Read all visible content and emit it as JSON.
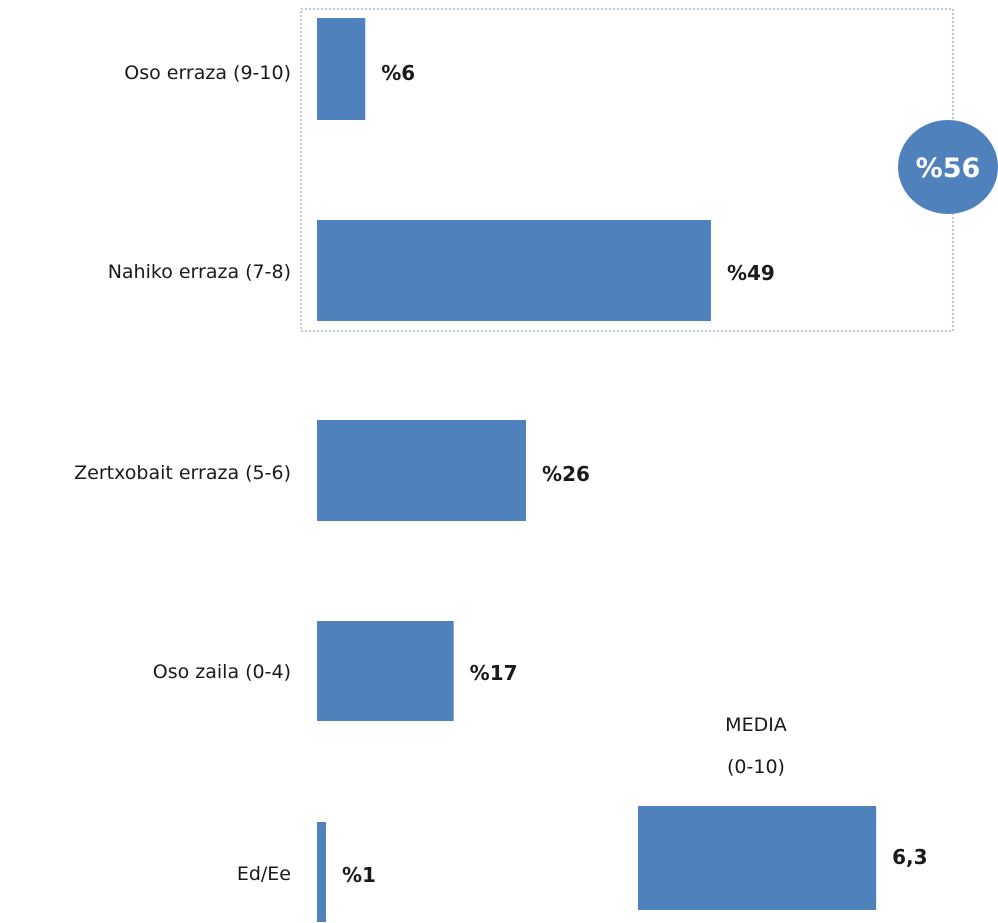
{
  "chart_data": {
    "type": "bar",
    "orientation": "horizontal",
    "categories": [
      "Oso erraza (9-10)",
      "Nahiko erraza (7-8)",
      "Zertxobait erraza (5-6)",
      "Oso zaila (0-4)",
      "Ed/Ee"
    ],
    "values": [
      6,
      49,
      26,
      17,
      1
    ],
    "value_labels": [
      "%6",
      "%49",
      "%26",
      "%17",
      "%1"
    ],
    "bar_color": "#4F81BD",
    "grid": false,
    "legend": "none",
    "group_highlight": {
      "categories": [
        "Oso erraza (9-10)",
        "Nahiko erraza (7-8)"
      ],
      "total_label": "%56",
      "border_style": "dotted",
      "border_color": "#8EA9C8",
      "bubble_color": "#4F81BD"
    },
    "media": {
      "title_line1": "MEDIA",
      "title_line2": "(0-10)",
      "value": 6.3,
      "value_label": "6,3",
      "scale_max": 10
    }
  }
}
